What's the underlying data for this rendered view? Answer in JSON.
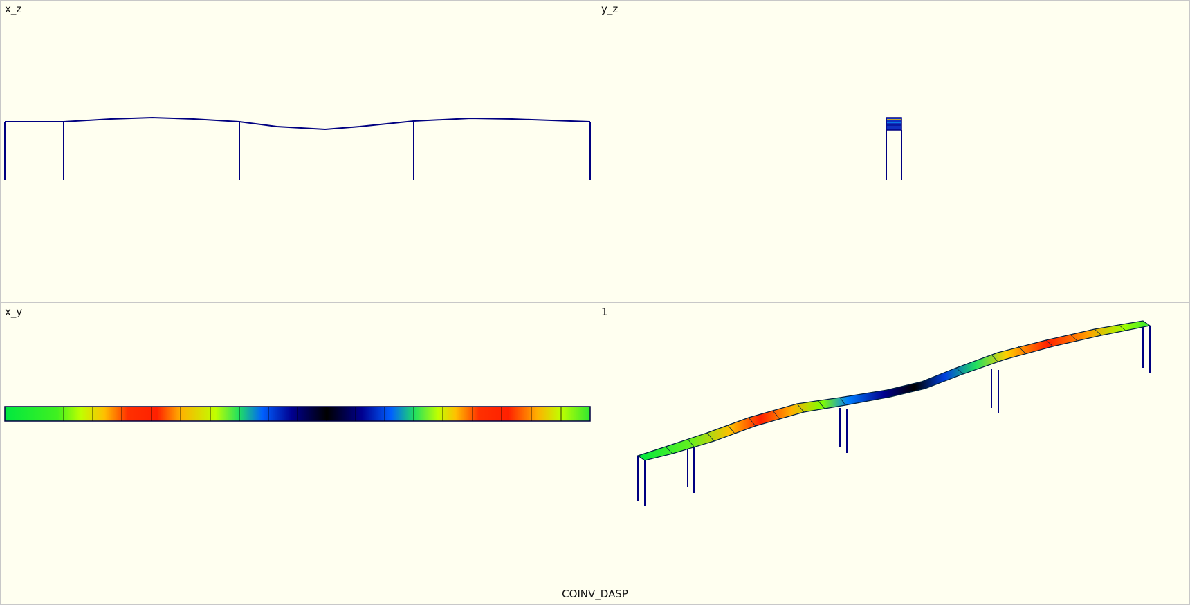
{
  "viewports": {
    "xz": {
      "label": "x_z"
    },
    "yz": {
      "label": "y_z"
    },
    "xy": {
      "label": "x_y"
    },
    "persp": {
      "label": "1"
    }
  },
  "footer": {
    "title": "COINV_DASP"
  },
  "colors": {
    "background": "#fffff0",
    "divider": "#c8c8c8",
    "structure_line": "#000080",
    "contour_scale": [
      "#00ff40",
      "#a0ff00",
      "#ffd000",
      "#ff2000",
      "#0040ff",
      "#000000"
    ]
  },
  "structure": {
    "deck_segments": 20,
    "piers": 5,
    "contour_pattern": [
      "green",
      "green",
      "yellow-green",
      "orange",
      "red",
      "orange",
      "green",
      "blue",
      "navy",
      "black",
      "navy",
      "blue",
      "green",
      "yellow",
      "orange",
      "red",
      "orange",
      "yellow",
      "green",
      "green"
    ]
  }
}
